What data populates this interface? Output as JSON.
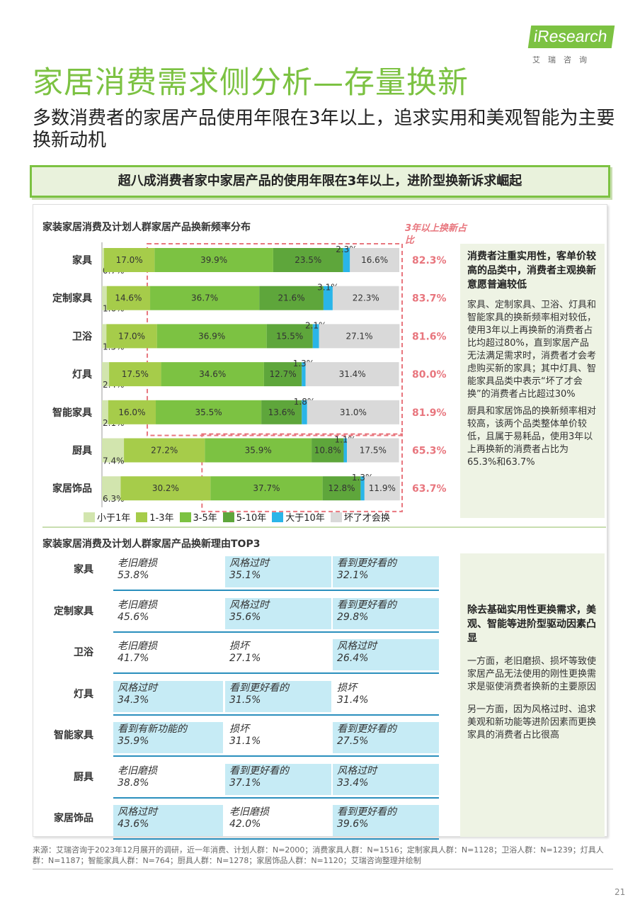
{
  "brand": {
    "logo_text": "iResearch",
    "logo_sub": "艾瑞咨询"
  },
  "header": {
    "title": "家居消费需求侧分析—存量换新",
    "subtitle": "多数消费者的家居产品使用年限在3年以上，追求实用和美观智能为主要换新动机",
    "banner": "超八成消费者家中家居产品的使用年限在3年以上，进阶型换新诉求崛起"
  },
  "colors": {
    "accent": "#7cc242",
    "highlight": "#e8767e",
    "blue": "#2ab5e8",
    "gray": "#d9d9d9"
  },
  "chart_data": {
    "type": "bar",
    "title": "家装家居消费及计划人群家居产品换新频率分布",
    "orientation": "horizontal-stacked",
    "categories": [
      "家具",
      "定制家具",
      "卫浴",
      "灯具",
      "智能家具",
      "厨具",
      "家居饰品"
    ],
    "series": [
      {
        "name": "小于1年",
        "color": "#d2e5ae",
        "values": [
          0.7,
          1.6,
          1.5,
          2.4,
          2.1,
          7.4,
          6.3
        ]
      },
      {
        "name": "1-3年",
        "color": "#a6cc4a",
        "values": [
          17.0,
          14.6,
          17.0,
          17.5,
          16.0,
          27.2,
          30.2
        ]
      },
      {
        "name": "3-5年",
        "color": "#7cc242",
        "values": [
          39.9,
          36.7,
          36.9,
          34.6,
          35.5,
          35.9,
          37.7
        ]
      },
      {
        "name": "5-10年",
        "color": "#5ea63b",
        "values": [
          23.5,
          21.6,
          15.5,
          12.7,
          13.6,
          10.8,
          12.8
        ]
      },
      {
        "name": "大于10年",
        "color": "#2ab5e8",
        "values": [
          2.3,
          3.1,
          2.1,
          1.3,
          1.8,
          1.1,
          1.3
        ]
      },
      {
        "name": "坏了才会换",
        "color": "#d9d9d9",
        "values": [
          16.6,
          22.3,
          27.1,
          31.4,
          31.0,
          17.5,
          11.9
        ]
      }
    ],
    "xlim": [
      0,
      100
    ],
    "callout_label": "3年以上换新占比",
    "callout_values": [
      "82.3%",
      "83.7%",
      "81.6%",
      "80.0%",
      "81.9%",
      "65.3%",
      "63.7%"
    ],
    "legend": "bottom"
  },
  "side1": {
    "heading": "消费者注重实用性，客单价较高的品类中，消费者主观换新意愿普遍较低",
    "p1": "家具、定制家具、卫浴、灯具和智能家具的换新频率相对较低，使用3年以上再换新的消费者占比均超过80%，直到家居产品无法满足需求时，消费者才会考虑购买新的家具；其中灯具、智能家具品类中表示“坏了才会换”的消费者占比超过30%",
    "p2": "厨具和家居饰品的换新频率相对较高，该两个品类整体单价较低，且属于易耗品，使用3年以上再换新的消费者占比为65.3%和63.7%"
  },
  "reasons": {
    "title": "家装家居消费及计划人群家居产品换新理由TOP3",
    "rows": [
      {
        "label": "家具",
        "items": [
          {
            "r": "老旧磨损",
            "v": "53.8%",
            "hl": false
          },
          {
            "r": "风格过时",
            "v": "35.1%",
            "hl": true
          },
          {
            "r": "看到更好看的",
            "v": "32.1%",
            "hl": true
          }
        ]
      },
      {
        "label": "定制家具",
        "items": [
          {
            "r": "老旧磨损",
            "v": "45.6%",
            "hl": false
          },
          {
            "r": "风格过时",
            "v": "35.6%",
            "hl": true
          },
          {
            "r": "看到更好看的",
            "v": "29.8%",
            "hl": true
          }
        ]
      },
      {
        "label": "卫浴",
        "items": [
          {
            "r": "老旧磨损",
            "v": "41.7%",
            "hl": false
          },
          {
            "r": "损坏",
            "v": "27.1%",
            "hl": false
          },
          {
            "r": "风格过时",
            "v": "26.4%",
            "hl": true
          }
        ]
      },
      {
        "label": "灯具",
        "items": [
          {
            "r": "风格过时",
            "v": "34.3%",
            "hl": true
          },
          {
            "r": "看到更好看的",
            "v": "31.5%",
            "hl": true
          },
          {
            "r": "损坏",
            "v": "31.4%",
            "hl": false
          }
        ]
      },
      {
        "label": "智能家具",
        "items": [
          {
            "r": "看到有新功能的",
            "v": "35.9%",
            "hl": true
          },
          {
            "r": "损坏",
            "v": "31.1%",
            "hl": false
          },
          {
            "r": "看到更好看的",
            "v": "27.5%",
            "hl": true
          }
        ]
      },
      {
        "label": "厨具",
        "items": [
          {
            "r": "老旧磨损",
            "v": "38.8%",
            "hl": false
          },
          {
            "r": "看到更好看的",
            "v": "37.1%",
            "hl": true
          },
          {
            "r": "风格过时",
            "v": "33.4%",
            "hl": true
          }
        ]
      },
      {
        "label": "家居饰品",
        "items": [
          {
            "r": "风格过时",
            "v": "43.6%",
            "hl": true
          },
          {
            "r": "老旧磨损",
            "v": "42.0%",
            "hl": false
          },
          {
            "r": "看到更好看的",
            "v": "39.6%",
            "hl": true
          }
        ]
      }
    ]
  },
  "side2": {
    "heading": "除去基础实用性更换需求，美观、智能等进阶型驱动因素凸显",
    "p1": "一方面，老旧磨损、损坏等致使家居产品无法使用的刚性更换需求是驱使消费者换新的主要原因",
    "p2": "另一方面，因为风格过时、追求美观和新功能等进阶因素而更换家具的消费者占比很高"
  },
  "footer": {
    "source": "来源：艾瑞咨询于2023年12月展开的调研，近一年消费、计划人群：N=2000；消费家具人群：N=1516；定制家具人群：N=1128；卫浴人群：N=1239；灯具人群：N=1187；智能家具人群：N=764；厨具人群：N=1278；家居饰品人群：N=1120；艾瑞咨询整理并绘制",
    "page": "21"
  }
}
